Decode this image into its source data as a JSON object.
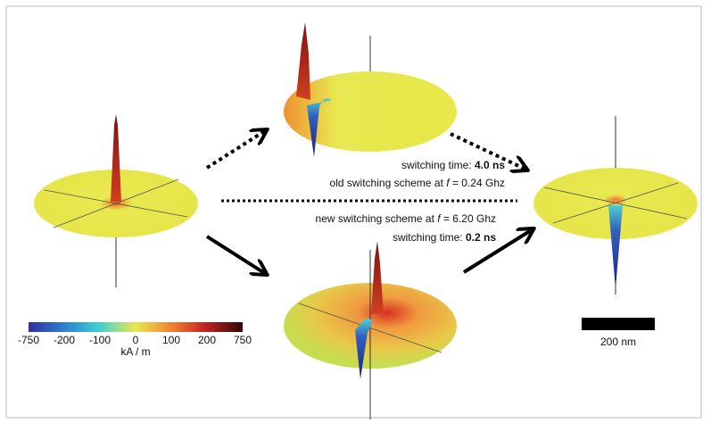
{
  "annotations": {
    "old_time": {
      "prefix": "switching time: ",
      "value": "4.0 ns"
    },
    "old_scheme": {
      "prefix": "old switching scheme at ",
      "variable": "f",
      "suffix": " = 0.24 Ghz"
    },
    "new_scheme": {
      "prefix": "new switching scheme at ",
      "variable": "f",
      "suffix": " = 6.20 Ghz"
    },
    "new_time": {
      "prefix": "switching time: ",
      "value": "0.2 ns"
    }
  },
  "colorbar": {
    "ticks": [
      "-750",
      "-200",
      "-100",
      "0",
      "100",
      "200",
      "750"
    ],
    "unit": "kA / m"
  },
  "scale_bar": {
    "label": "200 nm"
  }
}
